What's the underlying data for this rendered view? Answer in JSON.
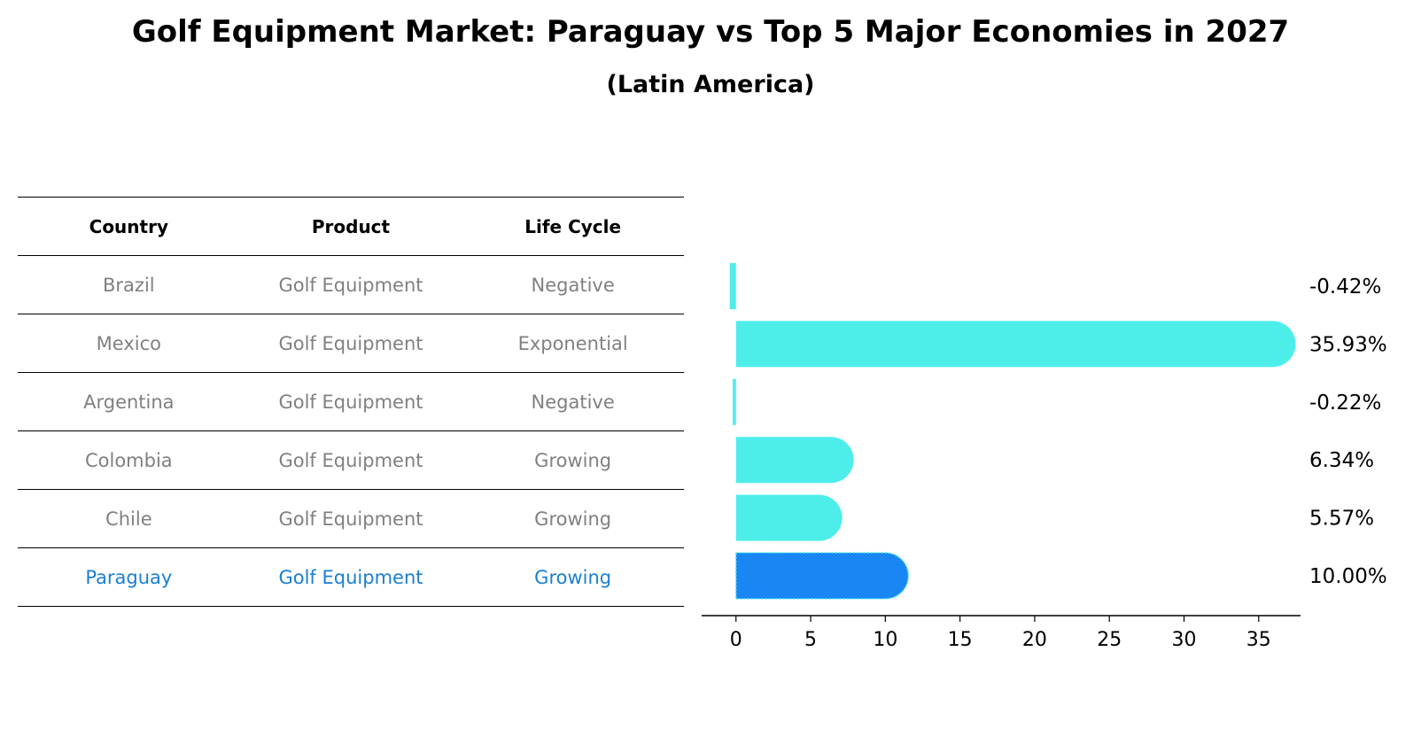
{
  "title": "Golf Equipment Market: Paraguay vs Top 5 Major Economies in 2027",
  "subtitle": "(Latin America)",
  "table": {
    "headers": [
      "Country",
      "Product",
      "Life Cycle"
    ],
    "rows": [
      {
        "country": "Brazil",
        "product": "Golf Equipment",
        "life_cycle": "Negative"
      },
      {
        "country": "Mexico",
        "product": "Golf Equipment",
        "life_cycle": "Exponential"
      },
      {
        "country": "Argentina",
        "product": "Golf Equipment",
        "life_cycle": "Negative"
      },
      {
        "country": "Colombia",
        "product": "Golf Equipment",
        "life_cycle": "Growing"
      },
      {
        "country": "Chile",
        "product": "Golf Equipment",
        "life_cycle": "Growing"
      },
      {
        "country": "Paraguay",
        "product": "Golf Equipment",
        "life_cycle": "Growing",
        "highlight": true
      }
    ]
  },
  "chart_data": {
    "type": "bar",
    "orientation": "horizontal",
    "categories": [
      "Brazil",
      "Mexico",
      "Argentina",
      "Colombia",
      "Chile",
      "Paraguay"
    ],
    "values": [
      -0.42,
      35.93,
      -0.22,
      6.34,
      5.57,
      10.0
    ],
    "value_labels": [
      "-0.42%",
      "35.93%",
      "-0.22%",
      "6.34%",
      "5.57%",
      "10.00%"
    ],
    "highlight_category": "Paraguay",
    "xlim": [
      -2.3,
      37.8
    ],
    "xticks": [
      0,
      5,
      10,
      15,
      20,
      25,
      30,
      35
    ],
    "grid": false,
    "colors": {
      "default": "#4deeea",
      "highlight": "#1a86f4"
    }
  }
}
